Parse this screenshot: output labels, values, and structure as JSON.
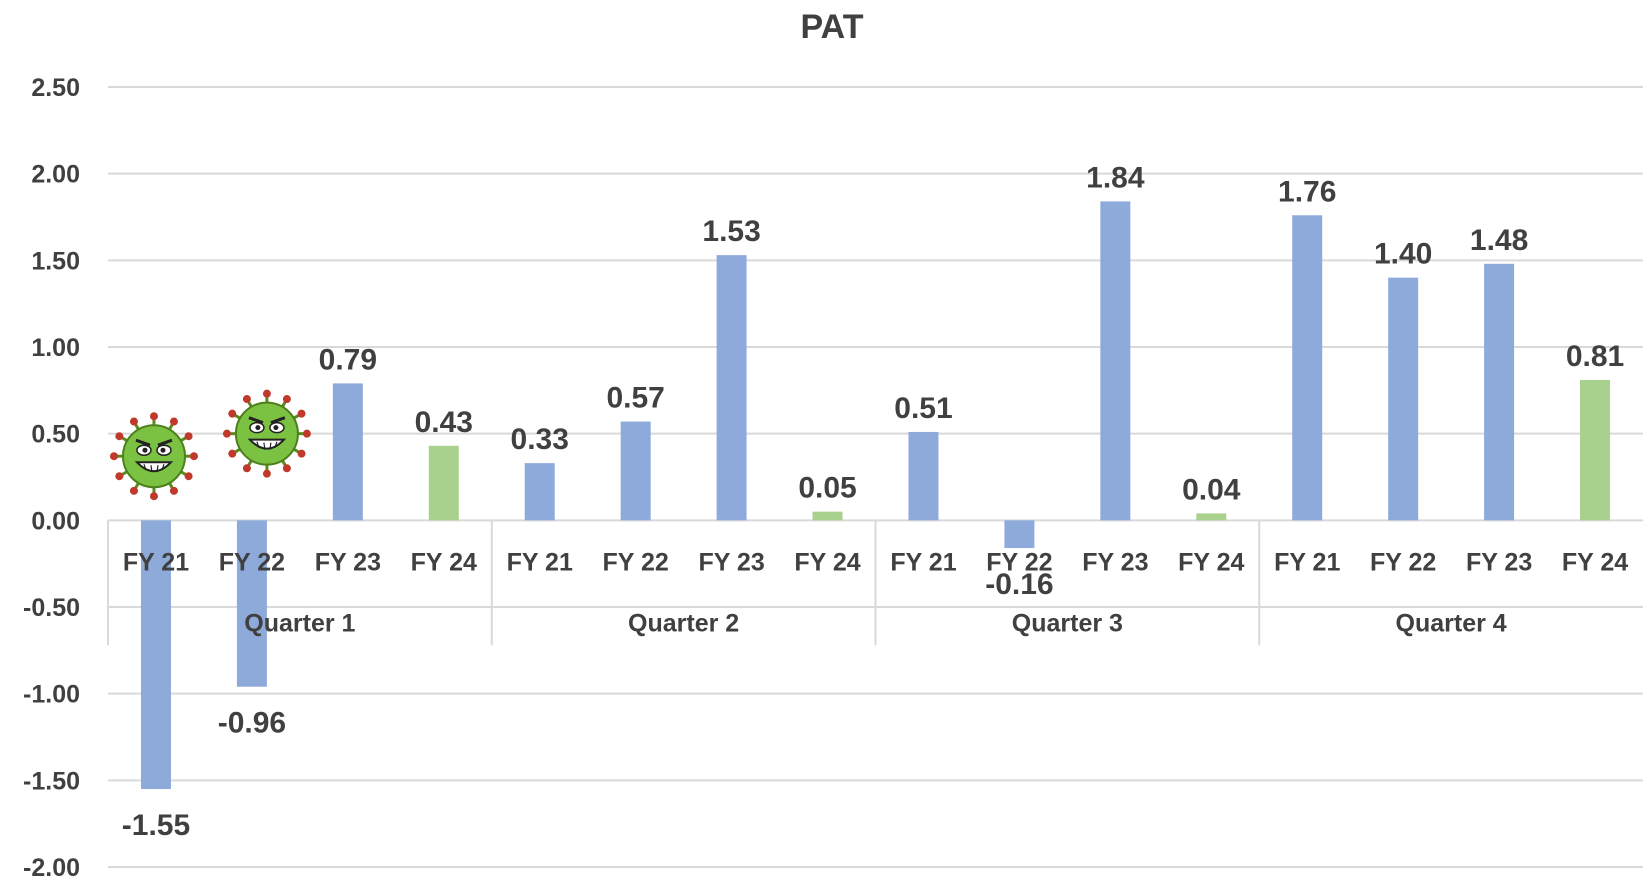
{
  "chart_data": {
    "type": "bar",
    "title": "PAT",
    "xlabel": "",
    "ylabel": "",
    "ylim": [
      -2.0,
      2.5
    ],
    "yticks": [
      "2.50",
      "2.00",
      "1.50",
      "1.00",
      "0.50",
      "0.00",
      "-0.50",
      "-1.00",
      "-1.50",
      "-2.00"
    ],
    "ytick_values": [
      2.5,
      2.0,
      1.5,
      1.0,
      0.5,
      0.0,
      -0.5,
      -1.0,
      -1.5,
      -2.0
    ],
    "grid": true,
    "groups": [
      "Quarter 1",
      "Quarter 2",
      "Quarter 3",
      "Quarter 4"
    ],
    "categories": [
      "FY 21",
      "FY 22",
      "FY 23",
      "FY 24"
    ],
    "values": [
      [
        -1.55,
        -0.96,
        0.79,
        0.43
      ],
      [
        0.33,
        0.57,
        1.53,
        0.05
      ],
      [
        0.51,
        -0.16,
        1.84,
        0.04
      ],
      [
        1.76,
        1.4,
        1.48,
        0.81
      ]
    ],
    "labels": [
      [
        "-1.55",
        "-0.96",
        "0.79",
        "0.43"
      ],
      [
        "0.33",
        "0.57",
        "1.53",
        "0.05"
      ],
      [
        "0.51",
        "-0.16",
        "1.84",
        "0.04"
      ],
      [
        "1.76",
        "1.40",
        "1.48",
        "0.81"
      ]
    ],
    "colors": {
      "past_years": "#8eaadb",
      "current_year": "#a9d18e",
      "text": "#404040",
      "grid": "#d9d9d9"
    },
    "annotations": [
      {
        "type": "image",
        "icon": "virus-icon",
        "near": "Quarter 1 FY 21"
      },
      {
        "type": "image",
        "icon": "virus-icon",
        "near": "Quarter 1 FY 22"
      }
    ]
  }
}
